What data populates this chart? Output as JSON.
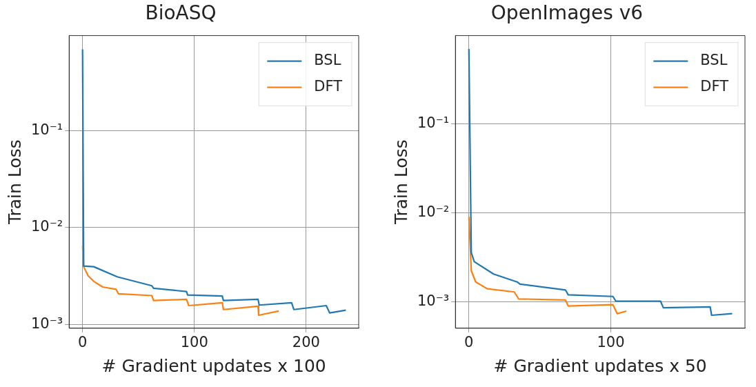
{
  "chart_data": [
    {
      "type": "line",
      "title": "BioASQ",
      "xlabel": "# Gradient updates x 100",
      "ylabel": "Train Loss",
      "log": "y",
      "grid": true,
      "legend": "top right",
      "xlim": [
        -12,
        247
      ],
      "xticks": [
        0,
        100,
        200
      ],
      "ylim": [
        0.00091,
        0.97
      ],
      "yticks": [
        {
          "value": 0.001,
          "label": "10⁻³"
        },
        {
          "value": 0.01,
          "label": "10⁻²"
        },
        {
          "value": 0.1,
          "label": "10⁻¹"
        }
      ],
      "series": [
        {
          "name": "BSL",
          "color": "#1f77b4",
          "x": [
            0,
            1,
            10,
            31,
            62,
            63.5,
            93,
            94,
            125,
            126,
            157,
            158,
            187,
            189,
            218,
            221,
            235.5
          ],
          "values": [
            0.7,
            0.004,
            0.00394,
            0.0031,
            0.0025,
            0.00236,
            0.00218,
            0.00201,
            0.00196,
            0.00176,
            0.00181,
            0.00158,
            0.00167,
            0.00142,
            0.00156,
            0.00131,
            0.0014
          ]
        },
        {
          "name": "DFT",
          "color": "#ff7f0e",
          "x": [
            0,
            1,
            5,
            10,
            18,
            30,
            32,
            62,
            63.5,
            93,
            95,
            125,
            126,
            157,
            157.5,
            175.5
          ],
          "values": [
            0.00646,
            0.00394,
            0.00318,
            0.00278,
            0.00243,
            0.0023,
            0.00207,
            0.00198,
            0.00176,
            0.00181,
            0.00156,
            0.00167,
            0.00142,
            0.00154,
            0.00124,
            0.00137
          ]
        }
      ]
    },
    {
      "type": "line",
      "title": "OpenImages v6",
      "xlabel": "# Gradient updates x 50",
      "ylabel": "Train Loss",
      "log": "y",
      "grid": true,
      "legend": "top right",
      "xlim": [
        -9.5,
        194.5
      ],
      "xticks": [
        0,
        100
      ],
      "ylim": [
        0.0005,
        0.99
      ],
      "yticks": [
        {
          "value": 0.001,
          "label": "10⁻³"
        },
        {
          "value": 0.01,
          "label": "10⁻²"
        },
        {
          "value": 0.1,
          "label": "10⁻¹"
        }
      ],
      "series": [
        {
          "name": "BSL",
          "color": "#1f77b4",
          "x": [
            0,
            1.7,
            3.8,
            17.4,
            34,
            36,
            68,
            70,
            101.5,
            103.5,
            135,
            137,
            170,
            171,
            185.5
          ],
          "values": [
            0.7,
            0.00355,
            0.00281,
            0.00204,
            0.00166,
            0.00157,
            0.00135,
            0.00119,
            0.00114,
            0.00101,
            0.00101,
            0.00085,
            0.00087,
            0.0007,
            0.00073
          ]
        },
        {
          "name": "DFT",
          "color": "#ff7f0e",
          "x": [
            0,
            1.7,
            4.8,
            13,
            32,
            35,
            68,
            70,
            101.5,
            104.5,
            111
          ],
          "values": [
            0.009,
            0.00222,
            0.00166,
            0.00139,
            0.00128,
            0.00107,
            0.00104,
            0.00089,
            0.00092,
            0.00073,
            0.00078
          ]
        }
      ]
    }
  ]
}
